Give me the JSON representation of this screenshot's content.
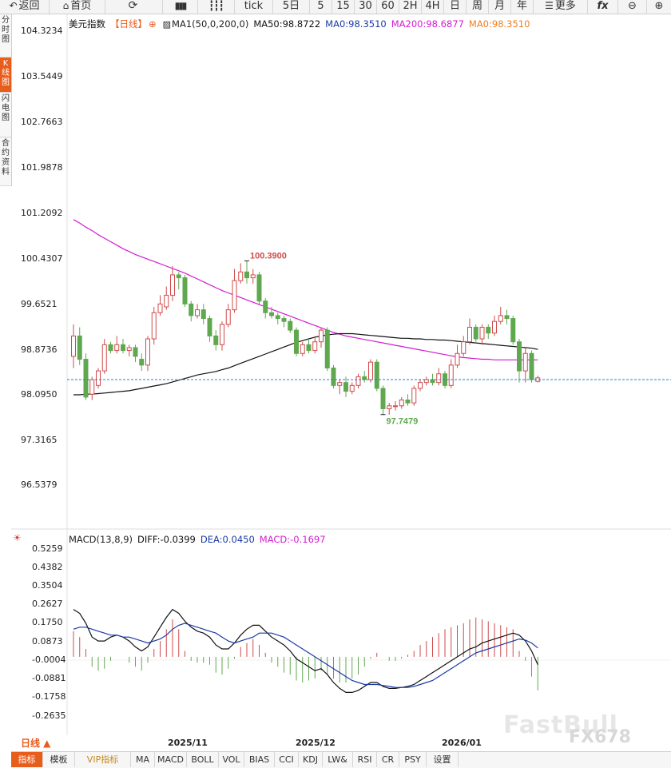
{
  "toolbar": {
    "back": "返回",
    "home": "首页",
    "tick": "tick",
    "d5": "5日",
    "m5": "5",
    "m15": "15",
    "m30": "30",
    "m60": "60",
    "h2": "2H",
    "h4": "4H",
    "day": "日",
    "week": "周",
    "month": "月",
    "year": "年",
    "more": "更多",
    "fx": "fx"
  },
  "leftnav": {
    "items": [
      "分时图",
      "K线图",
      "闪电图",
      "合约资料"
    ],
    "active_index": 1
  },
  "legend_main": {
    "symbol": "美元指数",
    "period_tag": "【日线】",
    "ma_config": "MA1(50,0,200,0)",
    "ma50": "MA50:98.8722",
    "ma0_blue": "MA0:98.3510",
    "ma200": "MA200:98.6877",
    "ma0_orange": "MA0:98.3510"
  },
  "legend_macd": {
    "name": "MACD(13,8,9)",
    "diff": "DIFF:-0.0399",
    "dea": "DEA:0.0450",
    "macd": "MACD:-0.1697"
  },
  "main_y_labels": [
    "104.3234",
    "103.5449",
    "102.7663",
    "101.9878",
    "101.2092",
    "100.4307",
    "99.6521",
    "98.8736",
    "98.0950",
    "97.3165",
    "96.5379"
  ],
  "macd_y_labels": [
    "0.5259",
    "0.4382",
    "0.3504",
    "0.2627",
    "0.1750",
    "0.0873",
    "-0.0004",
    "-0.0881",
    "-0.1758",
    "-0.2635"
  ],
  "x_labels": [
    "2025/11",
    "2025/12",
    "2026/01"
  ],
  "annotations": {
    "high": "100.3900",
    "low": "97.7479"
  },
  "period_button": "日线 ▲",
  "bottom_tabs": [
    "指标",
    "模板",
    "VIP指标",
    "MA",
    "MACD",
    "BOLL",
    "VOL",
    "BIAS",
    "CCI",
    "KDJ",
    "LW&",
    "RSI",
    "CR",
    "PSY",
    "设置"
  ],
  "watermark": "FX678",
  "colors": {
    "up": "#d14a4a",
    "down": "#5fa84f",
    "ma50": "#111111",
    "ma200": "#d21bd2",
    "accent": "#e85c1c",
    "ma0_blue": "#1a3aa8",
    "ma0_orange": "#f08020"
  },
  "chart_data": {
    "type": "candlestick",
    "y_range": [
      96.5379,
      104.3234
    ],
    "last_price": 98.351,
    "candles": [
      [
        98.75,
        99.1,
        99.3,
        98.55
      ],
      [
        99.1,
        98.7,
        99.25,
        98.6
      ],
      [
        98.7,
        98.05,
        98.8,
        98.0
      ],
      [
        98.1,
        98.35,
        98.4,
        98.0
      ],
      [
        98.25,
        98.5,
        98.55,
        98.2
      ],
      [
        98.5,
        98.95,
        99.05,
        98.45
      ],
      [
        98.95,
        98.85,
        99.0,
        98.8
      ],
      [
        98.85,
        98.95,
        99.1,
        98.8
      ],
      [
        98.95,
        98.85,
        99.05,
        98.8
      ],
      [
        98.85,
        98.9,
        98.95,
        98.75
      ],
      [
        98.9,
        98.75,
        98.95,
        98.65
      ],
      [
        98.7,
        98.6,
        98.8,
        98.5
      ],
      [
        98.6,
        99.05,
        99.1,
        98.5
      ],
      [
        99.05,
        99.5,
        99.6,
        98.95
      ],
      [
        99.5,
        99.65,
        99.8,
        99.45
      ],
      [
        99.6,
        99.8,
        99.95,
        99.55
      ],
      [
        99.8,
        100.15,
        100.3,
        99.7
      ],
      [
        100.15,
        100.1,
        100.2,
        99.9
      ],
      [
        100.1,
        99.65,
        100.15,
        99.6
      ],
      [
        99.65,
        99.45,
        99.7,
        99.35
      ],
      [
        99.45,
        99.55,
        99.65,
        99.4
      ],
      [
        99.55,
        99.4,
        99.65,
        99.3
      ],
      [
        99.4,
        99.1,
        99.45,
        99.0
      ],
      [
        99.1,
        98.95,
        99.2,
        98.85
      ],
      [
        98.95,
        99.3,
        99.35,
        98.85
      ],
      [
        99.3,
        99.55,
        99.65,
        99.25
      ],
      [
        99.55,
        100.05,
        100.25,
        99.5
      ],
      [
        100.05,
        100.2,
        100.35,
        100.0
      ],
      [
        100.2,
        100.1,
        100.39,
        100.0
      ],
      [
        100.1,
        100.15,
        100.25,
        100.0
      ],
      [
        100.15,
        99.7,
        100.2,
        99.65
      ],
      [
        99.7,
        99.5,
        99.75,
        99.4
      ],
      [
        99.5,
        99.45,
        99.6,
        99.4
      ],
      [
        99.45,
        99.4,
        99.5,
        99.3
      ],
      [
        99.4,
        99.35,
        99.45,
        99.25
      ],
      [
        99.35,
        99.2,
        99.4,
        99.15
      ],
      [
        99.2,
        98.8,
        99.25,
        98.75
      ],
      [
        98.8,
        98.95,
        99.0,
        98.75
      ],
      [
        98.95,
        98.85,
        99.05,
        98.8
      ],
      [
        98.85,
        99.0,
        99.1,
        98.8
      ],
      [
        99.0,
        99.2,
        99.25,
        98.9
      ],
      [
        99.2,
        98.55,
        99.25,
        98.5
      ],
      [
        98.55,
        98.25,
        98.6,
        98.2
      ],
      [
        98.25,
        98.3,
        98.35,
        98.1
      ],
      [
        98.3,
        98.15,
        98.4,
        98.05
      ],
      [
        98.15,
        98.25,
        98.3,
        98.1
      ],
      [
        98.25,
        98.4,
        98.45,
        98.2
      ],
      [
        98.4,
        98.35,
        98.5,
        98.3
      ],
      [
        98.35,
        98.65,
        98.7,
        98.3
      ],
      [
        98.65,
        98.2,
        98.7,
        98.15
      ],
      [
        98.2,
        97.85,
        98.25,
        97.75
      ],
      [
        97.85,
        97.9,
        97.95,
        97.75
      ],
      [
        97.9,
        97.9,
        97.98,
        97.82
      ],
      [
        97.9,
        98.0,
        98.05,
        97.85
      ],
      [
        98.0,
        97.95,
        98.1,
        97.9
      ],
      [
        97.95,
        98.2,
        98.25,
        97.9
      ],
      [
        98.2,
        98.3,
        98.35,
        98.15
      ],
      [
        98.3,
        98.35,
        98.4,
        98.25
      ],
      [
        98.35,
        98.3,
        98.45,
        98.25
      ],
      [
        98.3,
        98.45,
        98.55,
        98.25
      ],
      [
        98.45,
        98.25,
        98.5,
        98.2
      ],
      [
        98.25,
        98.6,
        98.7,
        98.2
      ],
      [
        98.6,
        98.8,
        98.95,
        98.55
      ],
      [
        98.8,
        99.0,
        99.1,
        98.75
      ],
      [
        99.0,
        99.25,
        99.4,
        98.95
      ],
      [
        99.25,
        99.05,
        99.3,
        99.0
      ],
      [
        99.05,
        99.25,
        99.3,
        98.95
      ],
      [
        99.25,
        99.15,
        99.3,
        99.05
      ],
      [
        99.15,
        99.35,
        99.45,
        99.1
      ],
      [
        99.35,
        99.45,
        99.6,
        99.3
      ],
      [
        99.45,
        99.4,
        99.55,
        99.3
      ],
      [
        99.4,
        99.0,
        99.45,
        98.95
      ],
      [
        99.0,
        98.5,
        99.05,
        98.3
      ],
      [
        98.5,
        98.8,
        98.9,
        98.3
      ],
      [
        98.8,
        98.35,
        98.85,
        98.3
      ],
      [
        98.32,
        98.38,
        98.42,
        98.3
      ]
    ],
    "ma50": [
      98.09,
      98.09,
      98.1,
      98.1,
      98.11,
      98.12,
      98.13,
      98.14,
      98.15,
      98.16,
      98.18,
      98.2,
      98.22,
      98.24,
      98.26,
      98.28,
      98.31,
      98.34,
      98.37,
      98.4,
      98.43,
      98.45,
      98.47,
      98.49,
      98.52,
      98.55,
      98.59,
      98.63,
      98.67,
      98.71,
      98.75,
      98.79,
      98.83,
      98.87,
      98.91,
      98.95,
      98.99,
      99.02,
      99.05,
      99.08,
      99.1,
      99.12,
      99.13,
      99.14,
      99.14,
      99.14,
      99.13,
      99.12,
      99.11,
      99.1,
      99.09,
      99.08,
      99.07,
      99.06,
      99.06,
      99.05,
      99.05,
      99.04,
      99.04,
      99.03,
      99.03,
      99.02,
      99.01,
      99.0,
      98.99,
      98.98,
      98.97,
      98.96,
      98.95,
      98.94,
      98.93,
      98.92,
      98.91,
      98.9,
      98.89,
      98.87
    ],
    "ma200": [
      101.1,
      101.04,
      100.97,
      100.91,
      100.84,
      100.78,
      100.72,
      100.66,
      100.6,
      100.55,
      100.5,
      100.46,
      100.42,
      100.38,
      100.34,
      100.3,
      100.26,
      100.22,
      100.18,
      100.13,
      100.08,
      100.03,
      99.98,
      99.93,
      99.88,
      99.84,
      99.8,
      99.76,
      99.72,
      99.68,
      99.64,
      99.6,
      99.56,
      99.52,
      99.48,
      99.44,
      99.4,
      99.36,
      99.32,
      99.28,
      99.24,
      99.2,
      99.16,
      99.13,
      99.1,
      99.08,
      99.06,
      99.04,
      99.02,
      99.0,
      98.98,
      98.96,
      98.94,
      98.92,
      98.9,
      98.88,
      98.86,
      98.84,
      98.82,
      98.8,
      98.78,
      98.76,
      98.74,
      98.73,
      98.72,
      98.71,
      98.7,
      98.7,
      98.69,
      98.69,
      98.69,
      98.69,
      98.69,
      98.69,
      98.69,
      98.69
    ],
    "macd_range": [
      -0.3,
      0.55
    ],
    "diff": [
      0.24,
      0.22,
      0.17,
      0.1,
      0.08,
      0.08,
      0.1,
      0.11,
      0.1,
      0.08,
      0.05,
      0.03,
      0.05,
      0.1,
      0.15,
      0.2,
      0.24,
      0.22,
      0.18,
      0.15,
      0.13,
      0.12,
      0.1,
      0.06,
      0.04,
      0.04,
      0.07,
      0.11,
      0.14,
      0.16,
      0.16,
      0.13,
      0.1,
      0.08,
      0.06,
      0.03,
      -0.01,
      -0.03,
      -0.05,
      -0.07,
      -0.06,
      -0.09,
      -0.13,
      -0.16,
      -0.18,
      -0.18,
      -0.17,
      -0.15,
      -0.13,
      -0.13,
      -0.15,
      -0.16,
      -0.16,
      -0.155,
      -0.15,
      -0.14,
      -0.12,
      -0.1,
      -0.08,
      -0.06,
      -0.04,
      -0.02,
      0.0,
      0.02,
      0.04,
      0.05,
      0.07,
      0.08,
      0.09,
      0.1,
      0.11,
      0.12,
      0.11,
      0.08,
      0.03,
      -0.04
    ],
    "dea": [
      0.14,
      0.15,
      0.15,
      0.14,
      0.13,
      0.12,
      0.11,
      0.11,
      0.1,
      0.1,
      0.09,
      0.08,
      0.07,
      0.08,
      0.09,
      0.11,
      0.14,
      0.16,
      0.17,
      0.16,
      0.15,
      0.14,
      0.13,
      0.12,
      0.1,
      0.08,
      0.07,
      0.08,
      0.09,
      0.1,
      0.12,
      0.12,
      0.12,
      0.11,
      0.1,
      0.08,
      0.06,
      0.04,
      0.02,
      0.0,
      -0.02,
      -0.04,
      -0.06,
      -0.08,
      -0.1,
      -0.12,
      -0.13,
      -0.14,
      -0.14,
      -0.14,
      -0.145,
      -0.15,
      -0.155,
      -0.155,
      -0.155,
      -0.15,
      -0.14,
      -0.13,
      -0.12,
      -0.1,
      -0.08,
      -0.06,
      -0.04,
      -0.02,
      0.0,
      0.02,
      0.03,
      0.04,
      0.05,
      0.06,
      0.07,
      0.08,
      0.09,
      0.085,
      0.07,
      0.045
    ],
    "macd_hist": [
      0.13,
      0.1,
      0.04,
      -0.05,
      -0.07,
      -0.06,
      -0.02,
      0.0,
      0.0,
      -0.03,
      -0.05,
      -0.07,
      -0.03,
      0.04,
      0.08,
      0.14,
      0.19,
      0.14,
      0.03,
      -0.02,
      -0.03,
      -0.03,
      -0.04,
      -0.08,
      -0.09,
      -0.06,
      -0.01,
      0.05,
      0.07,
      0.09,
      0.06,
      0.02,
      -0.03,
      -0.05,
      -0.08,
      -0.09,
      -0.12,
      -0.13,
      -0.12,
      -0.11,
      -0.07,
      -0.09,
      -0.11,
      -0.13,
      -0.13,
      -0.11,
      -0.09,
      -0.05,
      -0.01,
      0.02,
      0.0,
      -0.02,
      -0.02,
      -0.01,
      0.01,
      0.03,
      0.06,
      0.08,
      0.1,
      0.12,
      0.14,
      0.15,
      0.16,
      0.17,
      0.19,
      0.2,
      0.19,
      0.18,
      0.17,
      0.16,
      0.15,
      0.14,
      0.03,
      -0.02,
      -0.1,
      -0.17
    ]
  }
}
